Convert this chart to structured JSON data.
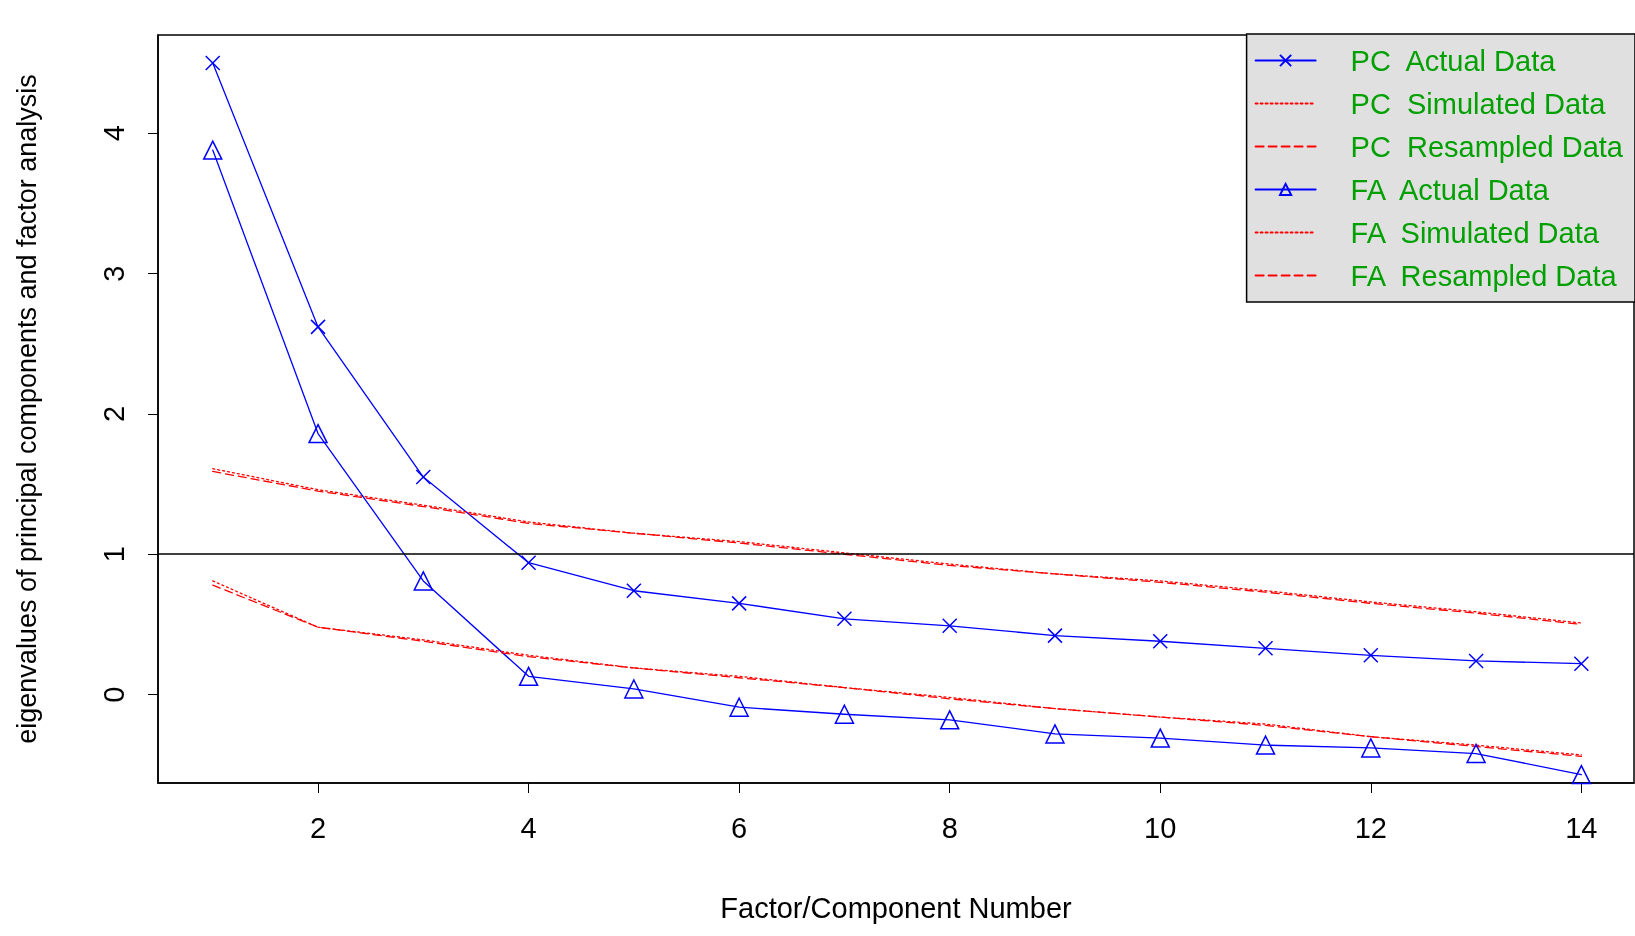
{
  "chart_data": {
    "type": "line",
    "xlabel": "Factor/Component Number",
    "ylabel": "eigenvalues of principal components and factor analysis",
    "x": [
      1,
      2,
      3,
      4,
      5,
      6,
      7,
      8,
      9,
      10,
      11,
      12,
      13,
      14
    ],
    "series": [
      {
        "name": "PC  Actual Data",
        "color": "#0000ff",
        "marker": "cross",
        "line_style": "solid",
        "values": [
          4.5,
          2.62,
          1.55,
          0.94,
          0.74,
          0.65,
          0.54,
          0.49,
          0.42,
          0.38,
          0.33,
          0.28,
          0.24,
          0.22
        ]
      },
      {
        "name": "PC  Simulated Data",
        "color": "#ff0000",
        "marker": "none",
        "line_style": "dotted",
        "values": [
          1.61,
          1.46,
          1.35,
          1.23,
          1.15,
          1.09,
          1.01,
          0.93,
          0.86,
          0.81,
          0.74,
          0.66,
          0.59,
          0.51
        ]
      },
      {
        "name": "PC  Resampled Data",
        "color": "#ff0000",
        "marker": "none",
        "line_style": "dashed",
        "values": [
          1.59,
          1.45,
          1.34,
          1.22,
          1.15,
          1.08,
          1.0,
          0.92,
          0.86,
          0.8,
          0.73,
          0.65,
          0.58,
          0.5
        ]
      },
      {
        "name": "FA  Actual Data",
        "color": "#0000ff",
        "marker": "triangle",
        "line_style": "solid",
        "values": [
          3.88,
          1.86,
          0.81,
          0.13,
          0.04,
          -0.09,
          -0.14,
          -0.18,
          -0.28,
          -0.31,
          -0.36,
          -0.38,
          -0.42,
          -0.57
        ]
      },
      {
        "name": "FA  Simulated Data",
        "color": "#ff0000",
        "marker": "none",
        "line_style": "dotted",
        "values": [
          0.81,
          0.48,
          0.39,
          0.28,
          0.19,
          0.13,
          0.05,
          -0.02,
          -0.1,
          -0.16,
          -0.21,
          -0.3,
          -0.36,
          -0.43
        ]
      },
      {
        "name": "FA  Resampled Data",
        "color": "#ff0000",
        "marker": "none",
        "line_style": "dashed",
        "values": [
          0.78,
          0.48,
          0.38,
          0.27,
          0.19,
          0.12,
          0.05,
          -0.03,
          -0.1,
          -0.16,
          -0.22,
          -0.3,
          -0.37,
          -0.44
        ]
      }
    ],
    "xlim": [
      0.48,
      14.5
    ],
    "xticks": [
      2,
      4,
      6,
      8,
      10,
      12,
      14
    ],
    "ylim": [
      -0.63,
      4.7
    ],
    "yticks": [
      0,
      1,
      2,
      3,
      4
    ],
    "ref_lines": [
      {
        "axis": "y",
        "value": 1,
        "color": "#000000"
      }
    ],
    "grid": false,
    "legend": "top right"
  }
}
